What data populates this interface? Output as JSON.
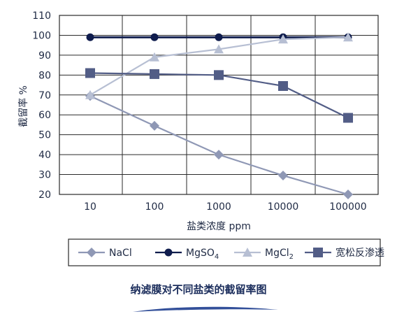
{
  "chart_data": {
    "type": "line",
    "title": "",
    "xlabel": "盐类浓度 ppm",
    "ylabel": "截留率 %",
    "categories": [
      "10",
      "100",
      "1000",
      "10000",
      "100000"
    ],
    "xscale": "log",
    "ylim": [
      20,
      110
    ],
    "yticks": [
      "20",
      "30",
      "40",
      "50",
      "60",
      "70",
      "80",
      "90",
      "100",
      "110"
    ],
    "grid": "horizontal and vertical",
    "legend_position": "bottom",
    "series": [
      {
        "key": "nacl",
        "name": "NaCl",
        "marker": "diamond",
        "color": "#8f98b5",
        "values": [
          69.5,
          54.5,
          40,
          29.5,
          20
        ]
      },
      {
        "key": "mgso4",
        "name": "MgSO4",
        "name_main": "MgSO",
        "name_sub": "4",
        "marker": "circle",
        "color": "#0f1c4d",
        "values": [
          99,
          99,
          99,
          99,
          99
        ]
      },
      {
        "key": "mgcl2",
        "name": "MgCl2",
        "name_main": "MgCl",
        "name_sub": "2",
        "marker": "triangle",
        "color": "#b7bfd3",
        "values": [
          70,
          89,
          93,
          98,
          99
        ]
      },
      {
        "key": "broad",
        "name": "宽松反渗透",
        "marker": "square",
        "color": "#525d86",
        "values": [
          81,
          80.5,
          80,
          74.5,
          58.5
        ]
      }
    ]
  },
  "caption": "纳滤膜对不同盐类的截留率图",
  "colors": {
    "axis": "#1f2a44",
    "grid": "#2a2a2a",
    "caption": "#1b2d5c",
    "wave": "#1d3d8f"
  }
}
